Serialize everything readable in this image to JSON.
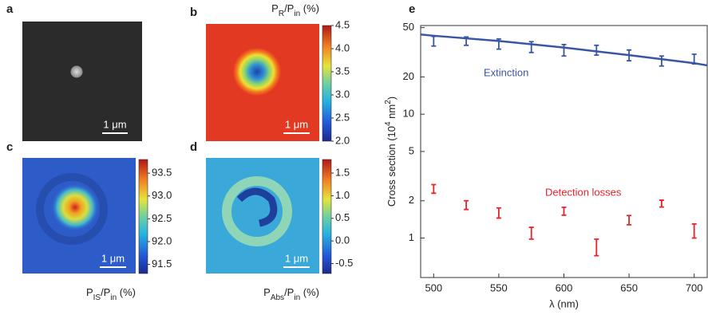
{
  "image_panels": [
    {
      "label": "a",
      "scale_bar": "1 μm"
    },
    {
      "label": "b",
      "scale_bar": "1 μm",
      "colorbar_label": [
        "P",
        "R",
        "/P",
        "in",
        " (%)"
      ],
      "clim": [
        2.0,
        4.5
      ],
      "cticks": [
        {
          "value": 2,
          "label": "2.0"
        },
        2.5,
        {
          "value": 3,
          "label": "3.0"
        },
        3.5,
        {
          "value": 4,
          "label": "4.0"
        },
        4.5
      ]
    },
    {
      "label": "c",
      "scale_bar": "1 μm",
      "colorbar_label": [
        "P",
        "IS",
        "/P",
        "in",
        " (%)"
      ],
      "clim": [
        91.3,
        93.8
      ],
      "cticks": [
        91.5,
        {
          "value": 92,
          "label": "92.0"
        },
        92.5,
        {
          "value": 93,
          "label": "93.0"
        },
        93.5
      ]
    },
    {
      "label": "d",
      "scale_bar": "1 μm",
      "colorbar_label": [
        "P",
        "Abs",
        "/P",
        "in",
        " (%)"
      ],
      "clim": [
        -0.72,
        1.8
      ],
      "cticks": [
        -0.5,
        {
          "value": 0,
          "label": "0.0"
        },
        0.5,
        {
          "value": 1,
          "label": "1.0"
        },
        1.5
      ]
    }
  ],
  "chart_data": {
    "type": "errorbar",
    "label": "e",
    "x_label": "λ (nm)",
    "y_label": [
      "Cross section (10",
      "4",
      " nm",
      "2",
      ")"
    ],
    "log_y": true,
    "xlim": [
      490,
      710
    ],
    "ylim": [
      0.48,
      52
    ],
    "xticks": [
      500,
      550,
      600,
      650,
      700
    ],
    "yticks": [
      1,
      2,
      5,
      10,
      20,
      50
    ],
    "x": [
      500,
      525,
      550,
      575,
      600,
      625,
      650,
      675,
      700
    ],
    "series": [
      {
        "name": "Extinction",
        "color": "#3a55a4",
        "values": [
          39,
          39,
          37,
          35,
          33,
          33,
          30,
          27,
          28
        ],
        "errors": [
          3.5,
          3,
          3.5,
          3.5,
          3.5,
          3,
          3,
          2.5,
          2.5
        ]
      },
      {
        "name": "Detection losses",
        "color": "#e5242b",
        "values": [
          2.5,
          1.85,
          1.6,
          1.1,
          1.65,
          0.85,
          1.4,
          1.9,
          1.15
        ],
        "errors": [
          0.2,
          0.15,
          0.15,
          0.12,
          0.12,
          0.13,
          0.12,
          0.12,
          0.15
        ]
      }
    ],
    "model": {
      "color": "#3a55a4",
      "x": [
        490,
        500,
        550,
        600,
        650,
        700,
        710
      ],
      "values": [
        44,
        43,
        39,
        34.5,
        30,
        25.8,
        24.8
      ]
    }
  }
}
